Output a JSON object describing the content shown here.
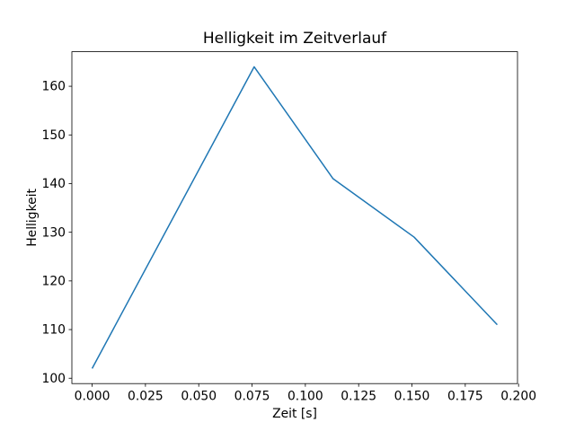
{
  "chart_data": {
    "type": "line",
    "title": "Helligkeit im Zeitverlauf",
    "xlabel": "Zeit [s]",
    "ylabel": "Helligkeit",
    "x": [
      0.0,
      0.076,
      0.113,
      0.151,
      0.19
    ],
    "y": [
      102,
      164,
      141,
      129,
      111
    ],
    "xlim": [
      -0.0095,
      0.1995
    ],
    "ylim": [
      98.9,
      167.1
    ],
    "xticks": [
      0.0,
      0.025,
      0.05,
      0.075,
      0.1,
      0.125,
      0.15,
      0.175,
      0.2
    ],
    "xtick_labels": [
      "0.000",
      "0.025",
      "0.050",
      "0.075",
      "0.100",
      "0.125",
      "0.150",
      "0.175",
      "0.200"
    ],
    "yticks": [
      100,
      110,
      120,
      130,
      140,
      150,
      160
    ],
    "ytick_labels": [
      "100",
      "110",
      "120",
      "130",
      "140",
      "150",
      "160"
    ],
    "line_color": "#1f77b4",
    "axes_color": "#000000",
    "background_color": "#ffffff",
    "grid": false,
    "legend_position": "none"
  }
}
